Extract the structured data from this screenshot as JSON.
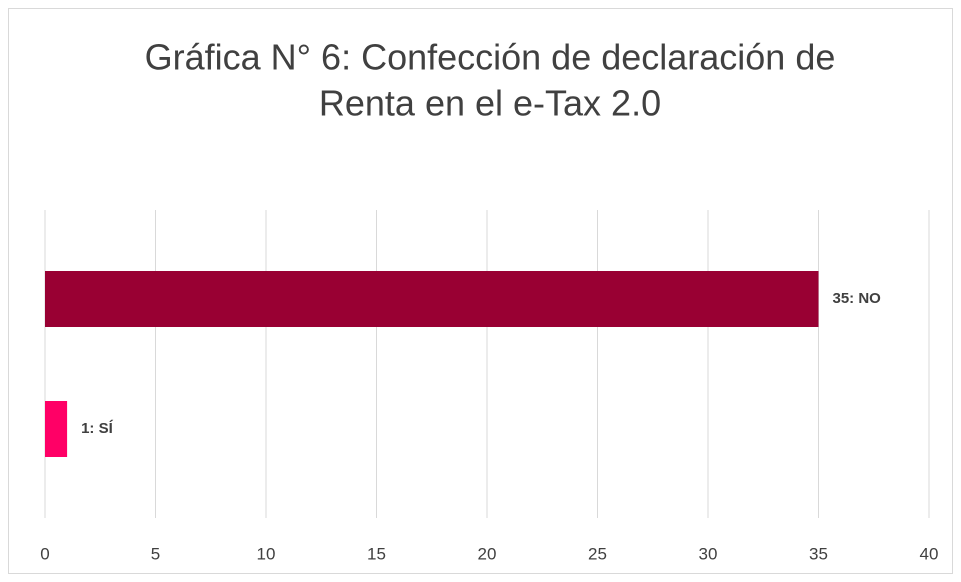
{
  "chart_data": {
    "type": "barh",
    "title": [
      "Gráfica N° 6: Confección de declaración de",
      "Renta en el e-Tax 2.0"
    ],
    "values": [
      35,
      1
    ],
    "value_labels": [
      "35: NO",
      "1: SÍ"
    ],
    "colors": [
      "#990033",
      "#ff0066"
    ],
    "xlim": [
      0,
      40
    ],
    "xticks": [
      0,
      5,
      10,
      15,
      20,
      25,
      30,
      35,
      40
    ],
    "grid": true
  }
}
